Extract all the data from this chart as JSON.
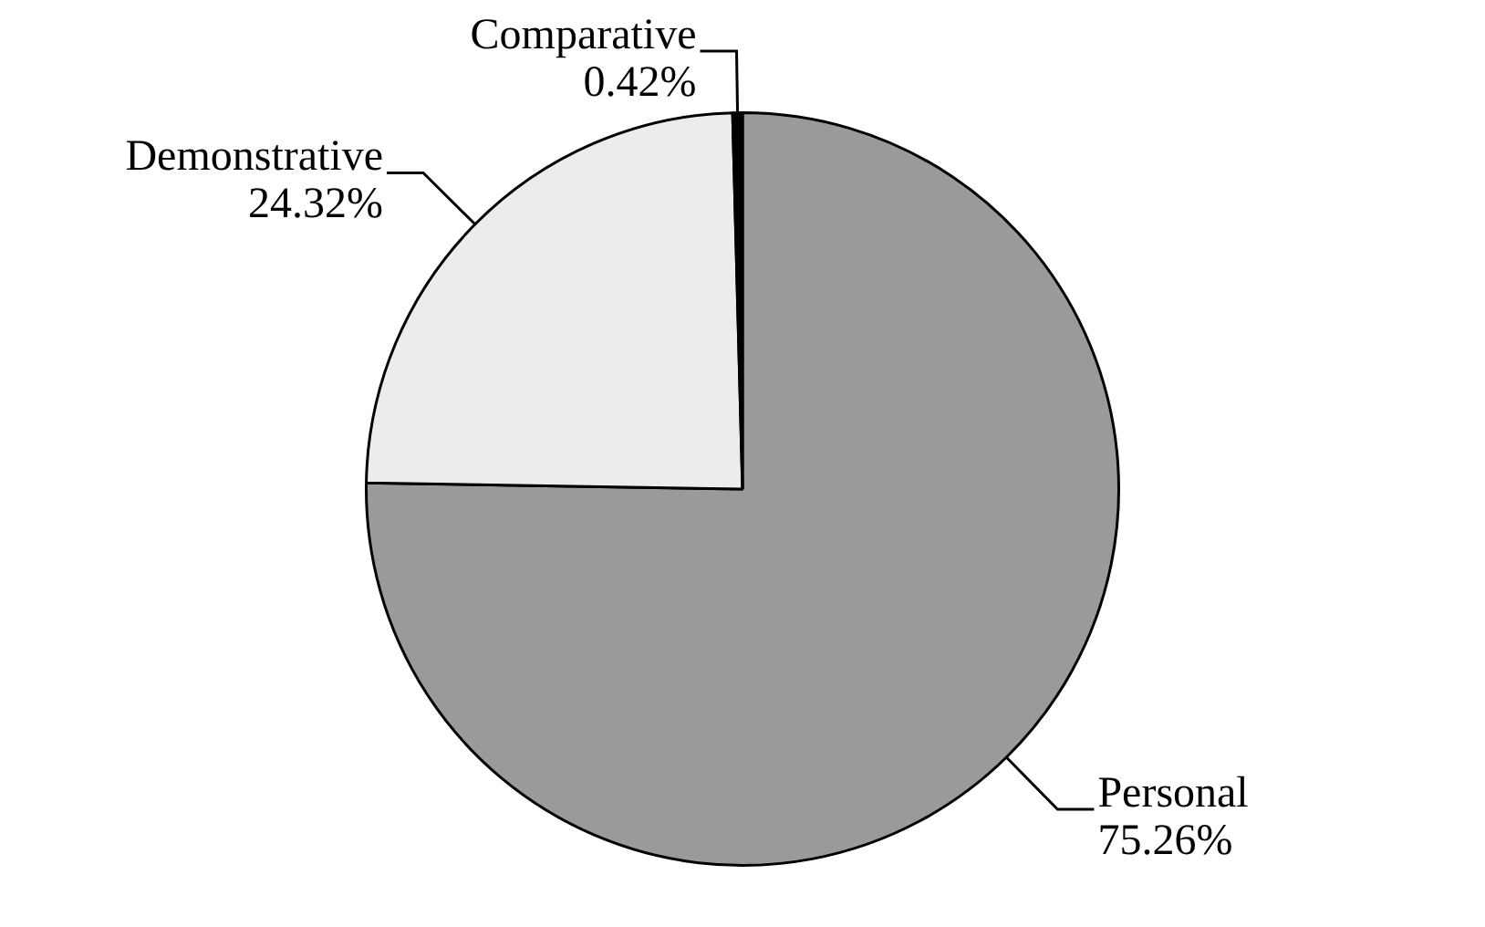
{
  "chart_data": {
    "type": "pie",
    "categories": [
      "Personal",
      "Demonstrative",
      "Comparative"
    ],
    "values": [
      75.26,
      24.32,
      0.42
    ],
    "colors": [
      "#9a9a9a",
      "#ececec",
      "#000000"
    ],
    "value_labels": [
      "75.26%",
      "24.32%",
      "0.42%"
    ],
    "legend": false
  }
}
